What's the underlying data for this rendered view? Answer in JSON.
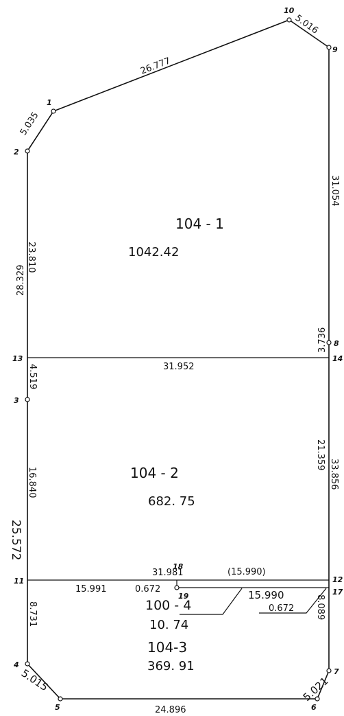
{
  "points": {
    "p1": "1",
    "p2": "2",
    "p3": "3",
    "p4": "4",
    "p5": "5",
    "p6": "6",
    "p7": "7",
    "p8": "8",
    "p9": "9",
    "p10": "10",
    "p11": "11",
    "p12": "12",
    "p13": "13",
    "p14": "14",
    "p17": "17",
    "p18": "18",
    "p19": "19"
  },
  "dimensions": {
    "d_10_9": "5.016",
    "d_1_10": "26.777",
    "d_2_1": "5.035",
    "d_9_8": "31.054",
    "d_left_upper_a": "23.810",
    "d_left_upper_b": "28.329",
    "d_8_14": "3.736",
    "d_13_14": "31.952",
    "d_13_3": "4.519",
    "d_3_11": "16.840",
    "d_left_total": "25.572",
    "d_14_12": "21.359",
    "d_right_total": "33.856",
    "d_18_12": "31.981",
    "d_paren": "(15.990)",
    "d_11_19": "15.991",
    "d_19_small": "0.672",
    "d_lot4_right": "15.990",
    "d_lot4_small": "0.672",
    "d_11_4": "8.731",
    "d_17_7": "8.089",
    "d_4_5": "5.015",
    "d_5_6": "24.896",
    "d_6_7": "5.021"
  },
  "lots": {
    "lot1": {
      "label": "104 - 1",
      "area": "1042.42"
    },
    "lot2": {
      "label": "104 - 2",
      "area": "682. 75"
    },
    "lot3": {
      "label": "104-3",
      "area": "369. 91"
    },
    "lot4": {
      "label": "100 - 4",
      "area": "10. 74"
    }
  }
}
